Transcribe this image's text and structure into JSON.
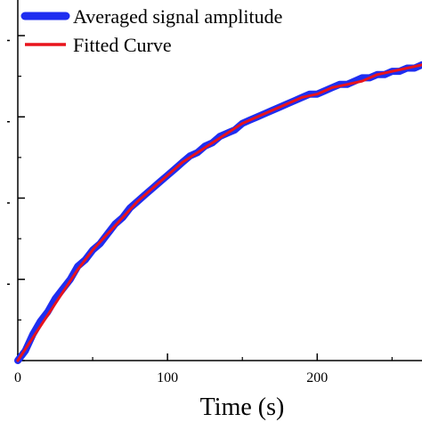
{
  "chart_data": {
    "type": "line",
    "title": "",
    "xlabel": "Time (s)",
    "ylabel": "",
    "xlim": [
      0,
      270
    ],
    "ylim": [
      0,
      1.0
    ],
    "x_ticks": [
      0,
      100,
      200
    ],
    "x_tick_labels": [
      "0",
      "100",
      "200"
    ],
    "grid": false,
    "legend": {
      "placement": "top-left",
      "entries": [
        {
          "name": "Averaged signal amplitude",
          "color": "#1f2ef0"
        },
        {
          "name": "Fitted Curve",
          "color": "#e8141c"
        }
      ]
    },
    "series": [
      {
        "name": "Averaged signal amplitude",
        "color": "#1f2ef0",
        "x": [
          0,
          5,
          10,
          15,
          20,
          25,
          30,
          35,
          40,
          45,
          50,
          55,
          60,
          65,
          70,
          75,
          80,
          85,
          90,
          95,
          100,
          105,
          110,
          115,
          120,
          125,
          130,
          135,
          140,
          145,
          150,
          155,
          160,
          165,
          170,
          175,
          180,
          185,
          190,
          195,
          200,
          205,
          210,
          215,
          220,
          225,
          230,
          235,
          240,
          245,
          250,
          255,
          260,
          265,
          270
        ],
        "y": [
          0.0,
          0.03,
          0.08,
          0.12,
          0.15,
          0.19,
          0.22,
          0.25,
          0.29,
          0.31,
          0.34,
          0.36,
          0.39,
          0.42,
          0.44,
          0.47,
          0.49,
          0.51,
          0.53,
          0.55,
          0.57,
          0.59,
          0.61,
          0.63,
          0.64,
          0.66,
          0.67,
          0.69,
          0.7,
          0.71,
          0.73,
          0.74,
          0.75,
          0.76,
          0.77,
          0.78,
          0.79,
          0.8,
          0.81,
          0.82,
          0.82,
          0.83,
          0.84,
          0.85,
          0.85,
          0.86,
          0.87,
          0.87,
          0.88,
          0.88,
          0.89,
          0.89,
          0.9,
          0.9,
          0.91
        ]
      },
      {
        "name": "Fitted Curve",
        "color": "#e8141c",
        "x": [
          0,
          10,
          20,
          30,
          40,
          50,
          60,
          70,
          80,
          90,
          100,
          110,
          120,
          130,
          140,
          150,
          160,
          170,
          180,
          190,
          200,
          210,
          220,
          230,
          240,
          250,
          260,
          270
        ],
        "y": [
          0.0,
          0.07,
          0.14,
          0.21,
          0.28,
          0.34,
          0.39,
          0.44,
          0.49,
          0.53,
          0.57,
          0.61,
          0.64,
          0.67,
          0.7,
          0.73,
          0.75,
          0.77,
          0.79,
          0.81,
          0.82,
          0.84,
          0.85,
          0.86,
          0.88,
          0.89,
          0.9,
          0.91
        ]
      }
    ]
  }
}
